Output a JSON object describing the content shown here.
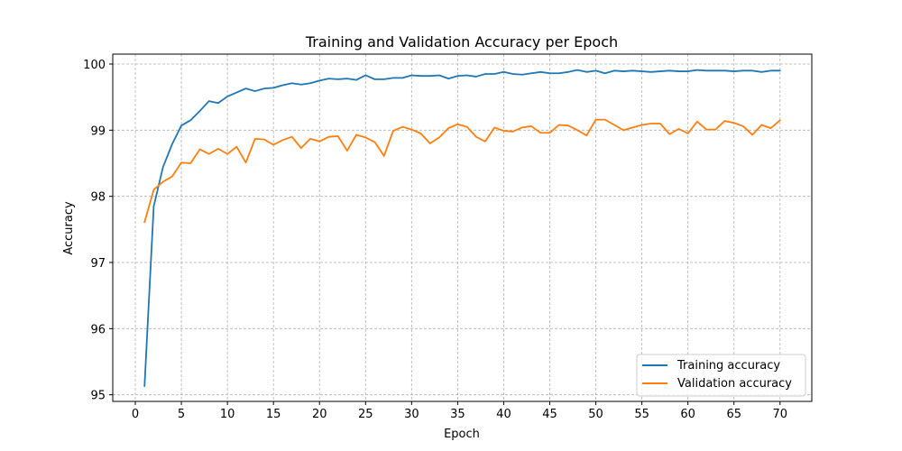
{
  "chart_data": {
    "type": "line",
    "title": "Training and Validation Accuracy per Epoch",
    "xlabel": "Epoch",
    "ylabel": "Accuracy",
    "xlim": [
      -2.45,
      73.45
    ],
    "ylim": [
      94.9,
      100.15
    ],
    "xticks": [
      0,
      5,
      10,
      15,
      20,
      25,
      30,
      35,
      40,
      45,
      50,
      55,
      60,
      65,
      70
    ],
    "yticks": [
      95,
      96,
      97,
      98,
      99,
      100
    ],
    "grid": true,
    "legend_position": "lower-right",
    "x": [
      1,
      2,
      3,
      4,
      5,
      6,
      7,
      8,
      9,
      10,
      11,
      12,
      13,
      14,
      15,
      16,
      17,
      18,
      19,
      20,
      21,
      22,
      23,
      24,
      25,
      26,
      27,
      28,
      29,
      30,
      31,
      32,
      33,
      34,
      35,
      36,
      37,
      38,
      39,
      40,
      41,
      42,
      43,
      44,
      45,
      46,
      47,
      48,
      49,
      50,
      51,
      52,
      53,
      54,
      55,
      56,
      57,
      58,
      59,
      60,
      61,
      62,
      63,
      64,
      65,
      66,
      67,
      68,
      69,
      70
    ],
    "series": [
      {
        "name": "Training accuracy",
        "color": "#1f77b4",
        "values": [
          95.13,
          97.85,
          98.44,
          98.79,
          99.07,
          99.15,
          99.29,
          99.44,
          99.41,
          99.51,
          99.57,
          99.63,
          99.59,
          99.63,
          99.64,
          99.68,
          99.71,
          99.69,
          99.71,
          99.75,
          99.78,
          99.77,
          99.78,
          99.76,
          99.83,
          99.77,
          99.77,
          99.79,
          99.79,
          99.83,
          99.82,
          99.82,
          99.83,
          99.78,
          99.82,
          99.83,
          99.81,
          99.85,
          99.85,
          99.88,
          99.85,
          99.84,
          99.86,
          99.88,
          99.86,
          99.86,
          99.88,
          99.91,
          99.88,
          99.9,
          99.86,
          99.9,
          99.89,
          99.9,
          99.89,
          99.88,
          99.89,
          99.9,
          99.89,
          99.89,
          99.91,
          99.9,
          99.9,
          99.9,
          99.89,
          99.9,
          99.9,
          99.88,
          99.9,
          99.9
        ]
      },
      {
        "name": "Validation accuracy",
        "color": "#ff7f0e",
        "values": [
          97.61,
          98.1,
          98.22,
          98.3,
          98.51,
          98.5,
          98.71,
          98.64,
          98.72,
          98.64,
          98.75,
          98.51,
          98.87,
          98.86,
          98.78,
          98.85,
          98.9,
          98.73,
          98.87,
          98.83,
          98.9,
          98.91,
          98.69,
          98.93,
          98.89,
          98.82,
          98.61,
          98.99,
          99.05,
          99.01,
          98.95,
          98.8,
          98.89,
          99.03,
          99.09,
          99.05,
          98.9,
          98.83,
          99.04,
          98.99,
          98.98,
          99.04,
          99.06,
          98.96,
          98.96,
          99.08,
          99.07,
          99.0,
          98.92,
          99.16,
          99.16,
          99.08,
          99.0,
          99.04,
          99.08,
          99.1,
          99.1,
          98.94,
          99.02,
          98.95,
          99.13,
          99.01,
          99.01,
          99.14,
          99.11,
          99.06,
          98.93,
          99.08,
          99.03,
          99.15
        ]
      }
    ]
  }
}
